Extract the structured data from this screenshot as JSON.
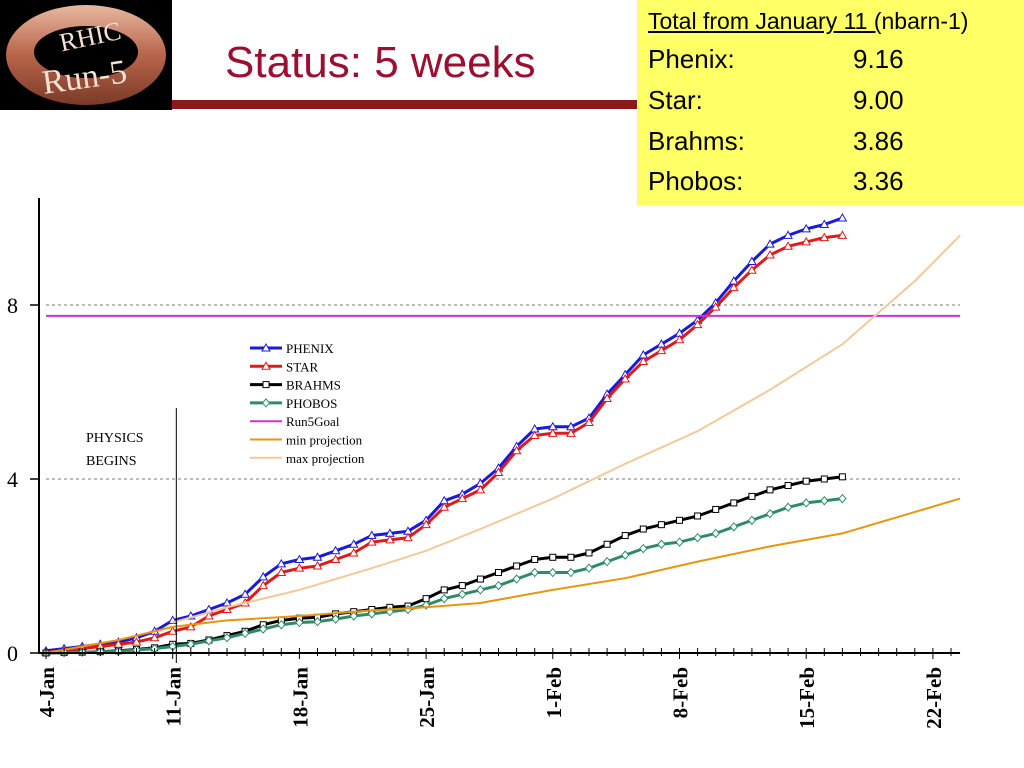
{
  "header": {
    "logo_text_top": "RHIC",
    "logo_text_bottom": "Run-5",
    "title": "Status: 5 weeks"
  },
  "totals": {
    "heading_underlined": "Total from January 11 (",
    "heading_rest": "nbarn-1)",
    "rows": [
      {
        "label": "Phenix:",
        "value": "9.16"
      },
      {
        "label": "Star:",
        "value": "9.00"
      },
      {
        "label": "Brahms:",
        "value": "3.86"
      },
      {
        "label": "Phobos:",
        "value": "3.36"
      }
    ]
  },
  "chart_data": {
    "type": "line",
    "x_ticks": [
      "4-Jan",
      "11-Jan",
      "18-Jan",
      "25-Jan",
      "1-Feb",
      "8-Feb",
      "15-Feb",
      "22-Feb"
    ],
    "x_range": [
      0,
      50.5
    ],
    "y_ticks": [
      "0",
      "4",
      "8"
    ],
    "y_range": [
      0,
      10.5
    ],
    "hgrid_dashed": [
      4,
      8
    ],
    "annotation": [
      "PHYSICS",
      "BEGINS"
    ],
    "annotation_day": 7.2,
    "legend_position": "upper-left",
    "series": [
      {
        "name": "PHENIX",
        "color": "#1a1adb",
        "marker": "triangle",
        "x": [
          0,
          1,
          2,
          3,
          4,
          5,
          6,
          7,
          8,
          9,
          10,
          11,
          12,
          13,
          14,
          15,
          16,
          17,
          18,
          19,
          20,
          21,
          22,
          23,
          24,
          25,
          26,
          27,
          28,
          29,
          30,
          31,
          32,
          33,
          34,
          35,
          36,
          37,
          38,
          39,
          40,
          41,
          42,
          43,
          44
        ],
        "y": [
          0.05,
          0.1,
          0.15,
          0.2,
          0.25,
          0.35,
          0.5,
          0.75,
          0.85,
          1.0,
          1.15,
          1.35,
          1.75,
          2.05,
          2.15,
          2.2,
          2.35,
          2.5,
          2.7,
          2.75,
          2.8,
          3.05,
          3.5,
          3.65,
          3.9,
          4.25,
          4.75,
          5.15,
          5.2,
          5.2,
          5.4,
          5.95,
          6.4,
          6.85,
          7.1,
          7.35,
          7.65,
          8.05,
          8.55,
          9.0,
          9.4,
          9.6,
          9.75,
          9.85,
          10.0
        ]
      },
      {
        "name": "STAR",
        "color": "#e01a1a",
        "marker": "triangle",
        "x": [
          0,
          1,
          2,
          3,
          4,
          5,
          6,
          7,
          8,
          9,
          10,
          11,
          12,
          13,
          14,
          15,
          16,
          17,
          18,
          19,
          20,
          21,
          22,
          23,
          24,
          25,
          26,
          27,
          28,
          29,
          30,
          31,
          32,
          33,
          34,
          35,
          36,
          37,
          38,
          39,
          40,
          41,
          42,
          43,
          44
        ],
        "y": [
          0.02,
          0.05,
          0.1,
          0.15,
          0.2,
          0.25,
          0.35,
          0.5,
          0.6,
          0.85,
          1.0,
          1.15,
          1.55,
          1.85,
          1.95,
          2.0,
          2.15,
          2.3,
          2.55,
          2.6,
          2.65,
          2.95,
          3.35,
          3.55,
          3.75,
          4.15,
          4.65,
          5.0,
          5.05,
          5.05,
          5.3,
          5.85,
          6.3,
          6.7,
          6.95,
          7.2,
          7.55,
          7.95,
          8.4,
          8.8,
          9.15,
          9.35,
          9.45,
          9.55,
          9.6
        ]
      },
      {
        "name": "BRAHMS",
        "color": "#000000",
        "marker": "square",
        "x": [
          0,
          1,
          2,
          3,
          4,
          5,
          6,
          7,
          8,
          9,
          10,
          11,
          12,
          13,
          14,
          15,
          16,
          17,
          18,
          19,
          20,
          21,
          22,
          23,
          24,
          25,
          26,
          27,
          28,
          29,
          30,
          31,
          32,
          33,
          34,
          35,
          36,
          37,
          38,
          39,
          40,
          41,
          42,
          43,
          44
        ],
        "y": [
          0,
          0.01,
          0.02,
          0.03,
          0.05,
          0.08,
          0.12,
          0.2,
          0.22,
          0.3,
          0.4,
          0.5,
          0.65,
          0.75,
          0.8,
          0.82,
          0.9,
          0.95,
          1.0,
          1.05,
          1.08,
          1.25,
          1.45,
          1.55,
          1.7,
          1.85,
          2.0,
          2.15,
          2.2,
          2.2,
          2.3,
          2.5,
          2.7,
          2.85,
          2.95,
          3.05,
          3.15,
          3.3,
          3.45,
          3.6,
          3.75,
          3.85,
          3.95,
          4.0,
          4.05
        ]
      },
      {
        "name": "PHOBOS",
        "color": "#2e8b6a",
        "marker": "diamond",
        "x": [
          0,
          1,
          2,
          3,
          4,
          5,
          6,
          7,
          8,
          9,
          10,
          11,
          12,
          13,
          14,
          15,
          16,
          17,
          18,
          19,
          20,
          21,
          22,
          23,
          24,
          25,
          26,
          27,
          28,
          29,
          30,
          31,
          32,
          33,
          34,
          35,
          36,
          37,
          38,
          39,
          40,
          41,
          42,
          43,
          44
        ],
        "y": [
          0,
          0.01,
          0.02,
          0.03,
          0.04,
          0.07,
          0.1,
          0.15,
          0.2,
          0.28,
          0.35,
          0.45,
          0.55,
          0.65,
          0.7,
          0.72,
          0.78,
          0.85,
          0.9,
          0.95,
          1.0,
          1.1,
          1.25,
          1.35,
          1.45,
          1.55,
          1.7,
          1.85,
          1.85,
          1.85,
          1.95,
          2.1,
          2.25,
          2.4,
          2.5,
          2.55,
          2.65,
          2.75,
          2.9,
          3.05,
          3.2,
          3.35,
          3.45,
          3.5,
          3.55
        ]
      },
      {
        "name": "Run5Goal",
        "color": "#cc33cc",
        "marker": "none",
        "x": [
          0,
          50.5
        ],
        "y": [
          7.75,
          7.75
        ]
      },
      {
        "name": "min projection",
        "color": "#e8960f",
        "marker": "none",
        "x": [
          0,
          4,
          7,
          10,
          14,
          18,
          21,
          24,
          28,
          32,
          36,
          40,
          44,
          50.5
        ],
        "y": [
          0.0,
          0.3,
          0.6,
          0.75,
          0.85,
          0.98,
          1.05,
          1.15,
          1.45,
          1.72,
          2.1,
          2.45,
          2.75,
          3.55
        ]
      },
      {
        "name": "max projection",
        "color": "#f3c99a",
        "marker": "none",
        "x": [
          7,
          10,
          14,
          18,
          21,
          24,
          28,
          32,
          36,
          40,
          44,
          48,
          50.5
        ],
        "y": [
          0.7,
          1.05,
          1.45,
          1.95,
          2.35,
          2.85,
          3.55,
          4.35,
          5.1,
          6.05,
          7.1,
          8.55,
          9.6
        ]
      }
    ]
  }
}
